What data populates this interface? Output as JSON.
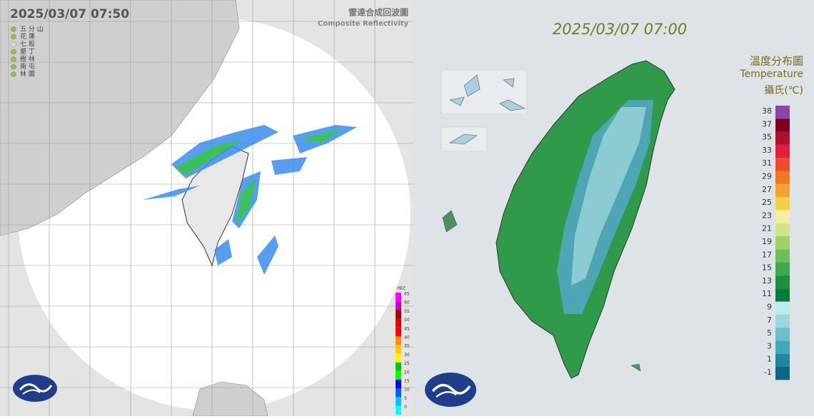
{
  "radar": {
    "timestamp": "2025/03/07  07:50",
    "title": "雷達合成回波圖",
    "subtitle": "Composite Reflectivity",
    "stations": [
      {
        "label": "五 分 山",
        "color": "#8bc34a"
      },
      {
        "label": "花 蓮",
        "color": "#8bc34a"
      },
      {
        "label": "七 股",
        "color": "#dddddd"
      },
      {
        "label": "墾 丁",
        "color": "#8bc34a"
      },
      {
        "label": "樹 林",
        "color": "#8bc34a"
      },
      {
        "label": "南 屯",
        "color": "#8bc34a"
      },
      {
        "label": "林 園",
        "color": "#8bc34a"
      }
    ],
    "legend": {
      "unit": "dBZ",
      "ticks": [
        65,
        60,
        55,
        50,
        45,
        40,
        35,
        30,
        25,
        20,
        15,
        10,
        5,
        0
      ],
      "colors": [
        "#ff00ff",
        "#c800c8",
        "#a00000",
        "#e00000",
        "#ff0000",
        "#ff8c00",
        "#ffc800",
        "#ffff00",
        "#00c800",
        "#00ff00",
        "#0000ff",
        "#0060ff",
        "#00c8ff",
        "#00ffff"
      ]
    }
  },
  "temperature": {
    "timestamp": "2025/03/07 07:00",
    "title": "溫度分布圖",
    "subtitle": "Temperature",
    "unit": "攝氏(℃)",
    "legend": {
      "ticks": [
        38,
        37,
        35,
        33,
        31,
        29,
        27,
        25,
        23,
        21,
        19,
        17,
        15,
        13,
        11,
        9,
        7,
        5,
        3,
        1,
        -1
      ],
      "colors": [
        "#8e44ad",
        "#7a0020",
        "#b0102a",
        "#e0203a",
        "#f04a30",
        "#f07820",
        "#f5a030",
        "#f5d040",
        "#f5f0a0",
        "#cde88a",
        "#9fd36a",
        "#6cbf5a",
        "#3fa84e",
        "#1e8f40",
        "#0a7a38",
        "#bfe9ec",
        "#9ad8de",
        "#6cc0cc",
        "#42a6b8",
        "#22869e",
        "#0f6680"
      ]
    }
  }
}
